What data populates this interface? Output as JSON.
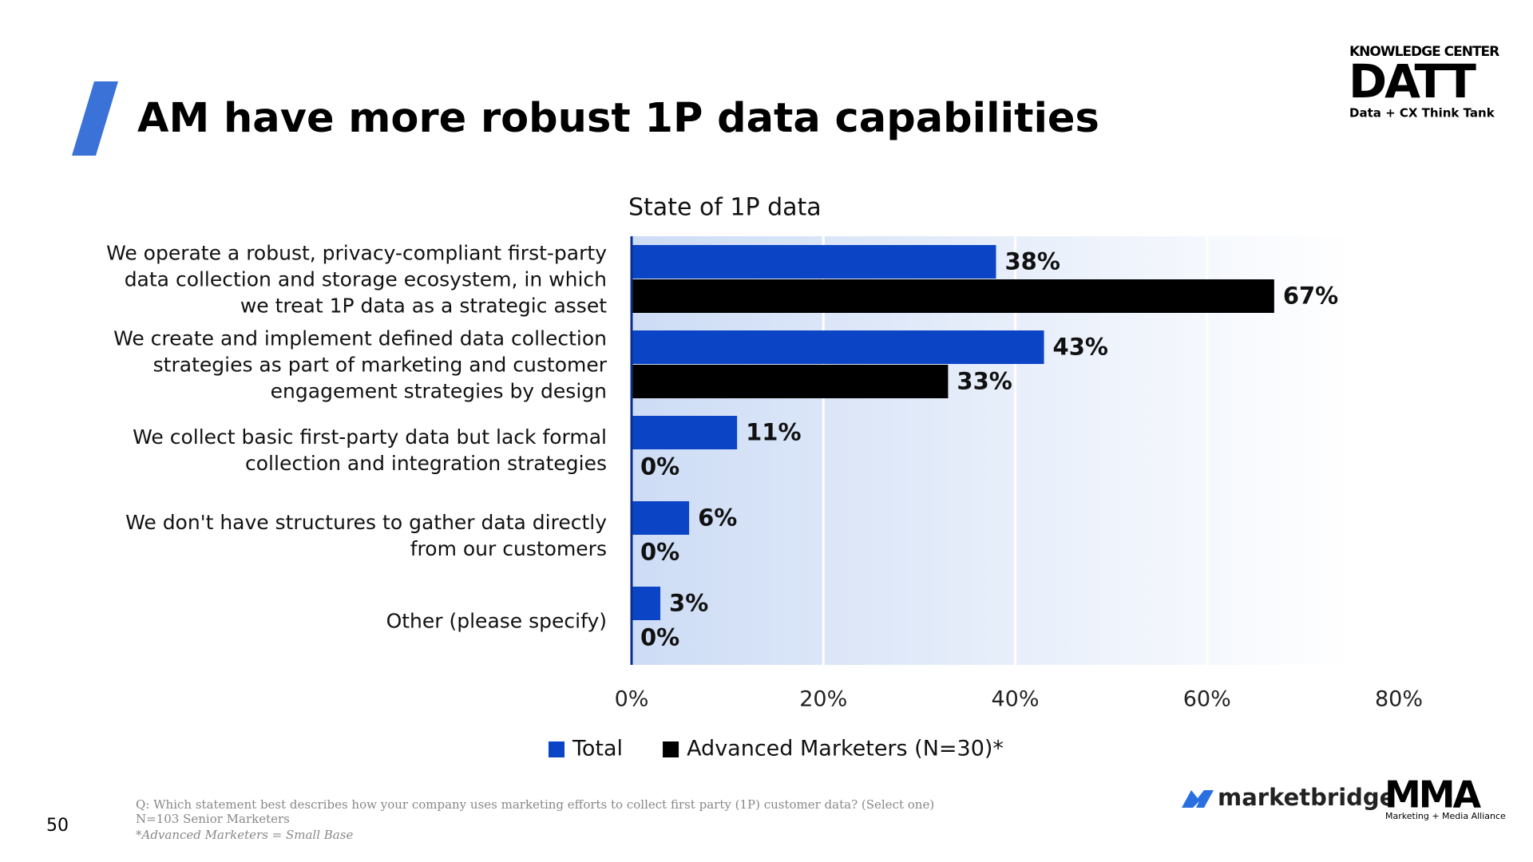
{
  "slide": {
    "title": "AM have more robust 1P data capabilities",
    "page_number": "50",
    "footnotes": [
      "Q: Which statement best describes how your company uses marketing efforts to collect first party (1P) customer data? (Select one)",
      "N=103 Senior Marketers",
      "*Advanced Marketers = Small Base"
    ]
  },
  "logos": {
    "datt_top": "KNOWLEDGE CENTER",
    "datt": "DATT",
    "datt_sub": "Data + CX Think Tank",
    "marketbridge": "marketbridge",
    "mma": "MMA",
    "mma_sub": "Marketing + Media Alliance"
  },
  "chart_data": {
    "type": "hbar",
    "title": "State of 1P data",
    "categories": [
      "We operate a robust, privacy-compliant first-party data collection and storage ecosystem, in which we treat 1P data as a strategic asset",
      "We create and implement defined data collection strategies as part of marketing and customer engagement strategies by design",
      "We collect basic first-party data but lack formal collection and integration strategies",
      "We don't have structures to gather data directly from our customers",
      "Other (please specify)"
    ],
    "series": [
      {
        "name": "Total",
        "color": "#0b44c4",
        "values": [
          38,
          43,
          11,
          6,
          3
        ],
        "value_labels": [
          "38%",
          "43%",
          "11%",
          "6%",
          "3%"
        ]
      },
      {
        "name": "Advanced Marketers (N=30)*",
        "color": "#000000",
        "values": [
          67,
          33,
          0,
          0,
          0
        ],
        "value_labels": [
          "67%",
          "33%",
          "0%",
          "0%",
          "0%"
        ]
      }
    ],
    "xlim": [
      0,
      80
    ],
    "xticks": [
      {
        "value": 0,
        "label": "0%"
      },
      {
        "value": 20,
        "label": "20%"
      },
      {
        "value": 40,
        "label": "40%"
      },
      {
        "value": 60,
        "label": "60%"
      },
      {
        "value": 80,
        "label": "80%"
      }
    ],
    "grid": true
  }
}
